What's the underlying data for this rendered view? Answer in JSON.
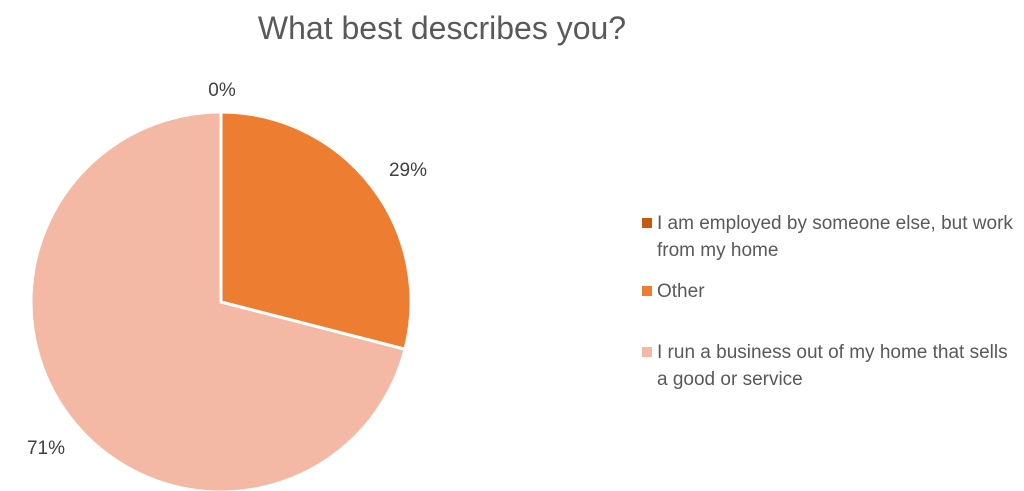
{
  "chart_data": {
    "type": "pie",
    "title": "What best describes you?",
    "legend_position": "right",
    "series": [
      {
        "name": "",
        "labels": [
          "I am employed by someone else, but work from my home",
          "Other",
          "I run a business out of my home that sells a good or service"
        ],
        "values": [
          0,
          29,
          71
        ],
        "data_labels": [
          "0%",
          "29%",
          "71%"
        ],
        "colors": [
          "#C55A11",
          "#ED7D31",
          "#F4B9A4"
        ]
      }
    ]
  }
}
